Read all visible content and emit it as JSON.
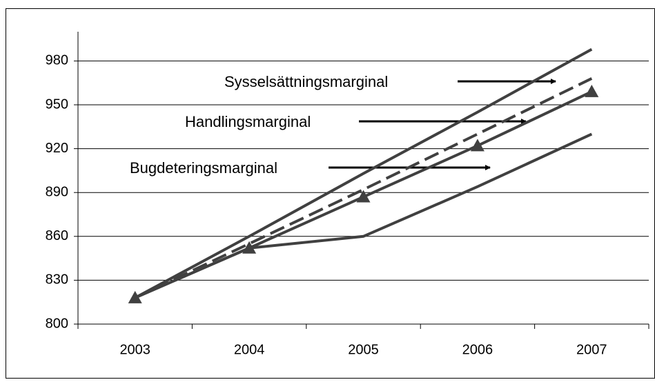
{
  "chart_data": {
    "type": "line",
    "categories": [
      "2003",
      "2004",
      "2005",
      "2006",
      "2007"
    ],
    "series": [
      {
        "color": "#404040",
        "dash": false,
        "marker": false,
        "values": [
          818,
          860,
          903,
          945,
          988
        ]
      },
      {
        "color": "#404040",
        "dash": true,
        "marker": false,
        "values": [
          818,
          855,
          892,
          930,
          968
        ]
      },
      {
        "color": "#404040",
        "dash": false,
        "marker": true,
        "values": [
          818,
          852,
          887,
          922,
          959
        ]
      },
      {
        "color": "#404040",
        "dash": false,
        "marker": false,
        "values": [
          818,
          852,
          860,
          894,
          930
        ]
      }
    ],
    "annotations": [
      "Sysselsättningsmarginal",
      "Handlingsmarginal",
      "Bugdeteringsmarginal"
    ],
    "ylim": [
      800,
      1000
    ],
    "yticks": [
      800,
      830,
      860,
      890,
      920,
      950,
      980
    ],
    "grid": true
  }
}
